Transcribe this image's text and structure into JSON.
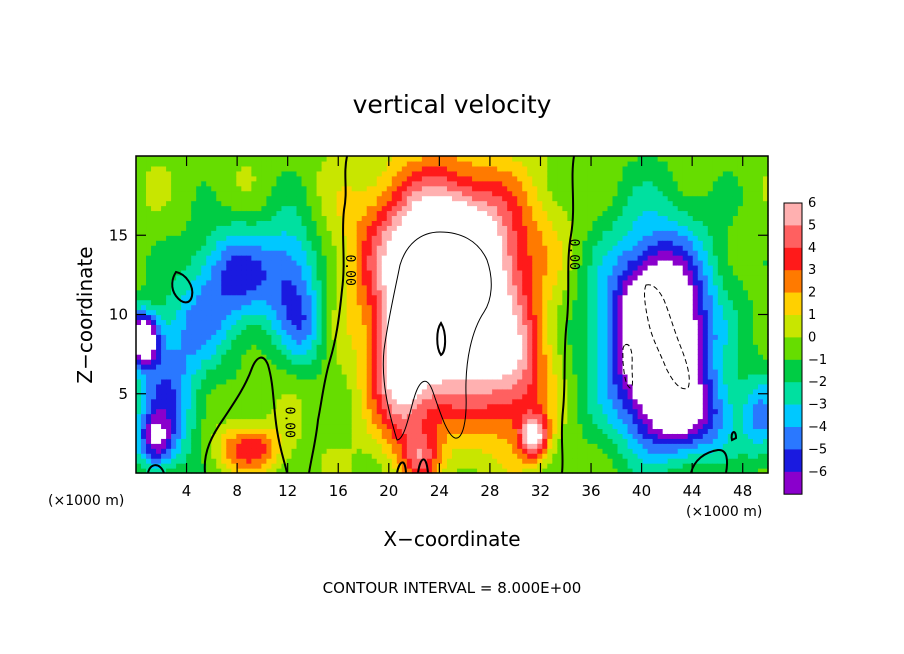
{
  "chart_data": {
    "type": "heatmap",
    "title": "vertical velocity",
    "xlabel": "X−coordinate",
    "ylabel": "Z−coordinate",
    "x_unit_label": "(×1000 m)",
    "y_unit_label": "(×1000 m)",
    "xlim": [
      0,
      50
    ],
    "ylim": [
      0,
      20
    ],
    "x_ticks": [
      "4",
      "8",
      "12",
      "16",
      "20",
      "24",
      "28",
      "32",
      "36",
      "40",
      "44",
      "48"
    ],
    "x_tick_values": [
      4,
      8,
      12,
      16,
      20,
      24,
      28,
      32,
      36,
      40,
      44,
      48
    ],
    "y_ticks": [
      "5",
      "10",
      "15"
    ],
    "y_tick_values": [
      5,
      10,
      15
    ],
    "contour_interval_text": "CONTOUR INTERVAL = 8.000E+00",
    "contour_labels": [
      {
        "text": "0.00",
        "x": 16.3,
        "y": 12.8
      },
      {
        "text": "0.00",
        "x": 34.0,
        "y": 13.8
      },
      {
        "text": "0.00",
        "x": 11.5,
        "y": 3.2
      }
    ],
    "colorbar": {
      "labels": [
        "6",
        "5",
        "4",
        "3",
        "2",
        "1",
        "0",
        "−1",
        "−2",
        "−3",
        "−4",
        "−5",
        "−6"
      ],
      "values": [
        6,
        5,
        4,
        3,
        2,
        1,
        0,
        -1,
        -2,
        -3,
        -4,
        -5,
        -6
      ],
      "colors": [
        "#ffb0b0",
        "#ff6060",
        "#ff1a1a",
        "#ff7a00",
        "#ffd000",
        "#c8e600",
        "#66dd00",
        "#00cc44",
        "#00e0a0",
        "#00c8ff",
        "#2a78ff",
        "#1a1ae0",
        "#8a00cc"
      ]
    },
    "features": [
      {
        "kind": "updraft",
        "x": 24.5,
        "z": 10.5,
        "sx": 3.4,
        "sz": 4.6,
        "amp": 9.5
      },
      {
        "kind": "updraft",
        "x": 24.8,
        "z": 14.5,
        "sx": 5.0,
        "sz": 3.2,
        "amp": 5.2
      },
      {
        "kind": "updraft",
        "x": 21.0,
        "z": 6.0,
        "sx": 1.6,
        "sz": 3.2,
        "amp": 4.5
      },
      {
        "kind": "updraft",
        "x": 30.0,
        "z": 6.5,
        "sx": 2.0,
        "sz": 3.0,
        "amp": 4.5
      },
      {
        "kind": "updraft",
        "x": 31.5,
        "z": 2.3,
        "sx": 0.8,
        "sz": 1.0,
        "amp": 6.0
      },
      {
        "kind": "updraft",
        "x": 22.5,
        "z": 1.0,
        "sx": 1.0,
        "sz": 1.2,
        "amp": 3.0
      },
      {
        "kind": "updraft",
        "x": 9.0,
        "z": 1.6,
        "sx": 1.8,
        "sz": 1.0,
        "amp": 4.0
      },
      {
        "kind": "downdraft",
        "x": 41.5,
        "z": 8.5,
        "sx": 2.2,
        "sz": 3.5,
        "amp": -8.5
      },
      {
        "kind": "downdraft",
        "x": 41.0,
        "z": 9.5,
        "sx": 3.8,
        "sz": 5.0,
        "amp": -5.0
      },
      {
        "kind": "downdraft",
        "x": 44.0,
        "z": 3.5,
        "sx": 3.0,
        "sz": 1.8,
        "amp": -4.0
      },
      {
        "kind": "downdraft",
        "x": 0.5,
        "z": 8.5,
        "sx": 0.9,
        "sz": 1.2,
        "amp": -9.0
      },
      {
        "kind": "downdraft",
        "x": 2.5,
        "z": 4.5,
        "sx": 1.8,
        "sz": 2.8,
        "amp": -4.5
      },
      {
        "kind": "downdraft",
        "x": 8.0,
        "z": 12.5,
        "sx": 2.8,
        "sz": 2.3,
        "amp": -4.8
      },
      {
        "kind": "downdraft",
        "x": 12.5,
        "z": 12.5,
        "sx": 1.5,
        "sz": 3.0,
        "amp": -3.5
      },
      {
        "kind": "downdraft",
        "x": 5.0,
        "z": 9.0,
        "sx": 2.2,
        "sz": 2.0,
        "amp": -2.5
      },
      {
        "kind": "downdraft",
        "x": 13.5,
        "z": 9.0,
        "sx": 1.3,
        "sz": 1.8,
        "amp": -2.4
      },
      {
        "kind": "downdraft",
        "x": 1.5,
        "z": 2.0,
        "sx": 1.0,
        "sz": 1.2,
        "amp": -4.5
      },
      {
        "kind": "downdraft",
        "x": 49.5,
        "z": 3.5,
        "sx": 1.0,
        "sz": 2.0,
        "amp": -3.0
      }
    ]
  }
}
